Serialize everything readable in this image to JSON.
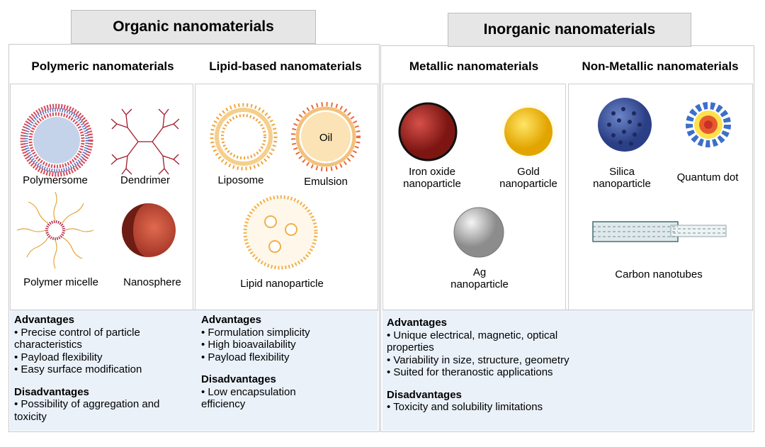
{
  "organic": {
    "title": "Organic nanomaterials",
    "groups": [
      {
        "title": "Polymeric nanomaterials",
        "items": [
          "Polymersome",
          "Dendrimer",
          "Polymer micelle",
          "Nanosphere"
        ],
        "advantages": {
          "heading": "Advantages",
          "points": [
            "• Precise control of particle characteristics",
            "• Payload flexibility",
            "• Easy surface modification"
          ]
        },
        "disadvantages": {
          "heading": "Disadvantages",
          "points": [
            "• Possibility of aggregation and toxicity"
          ]
        }
      },
      {
        "title": "Lipid-based nanomaterials",
        "items": [
          "Liposome",
          "Emulsion",
          "Lipid nanoparticle"
        ],
        "emulsion_core": "Oil",
        "advantages": {
          "heading": "Advantages",
          "points": [
            "• Formulation simplicity",
            "• High bioavailability",
            "• Payload flexibility"
          ]
        },
        "disadvantages": {
          "heading": "Disadvantages",
          "points": [
            "• Low encapsulation efficiency"
          ]
        }
      }
    ]
  },
  "inorganic": {
    "title": "Inorganic nanomaterials",
    "groups": [
      {
        "title": "Metallic nanomaterials",
        "items": [
          "Iron oxide nanoparticle",
          "Gold nanoparticle",
          "Ag nanoparticle"
        ]
      },
      {
        "title": "Non-Metallic nanomaterials",
        "items": [
          "Silica nanoparticle",
          "Quantum dot",
          "Carbon nanotubes"
        ]
      }
    ],
    "advantages": {
      "heading": "Advantages",
      "points": [
        "• Unique electrical, magnetic, optical properties",
        "• Variability in size, structure, geometry",
        "• Suited for theranostic applications"
      ]
    },
    "disadvantages": {
      "heading": "Disadvantages",
      "points": [
        "• Toxicity and solubility limitations"
      ]
    }
  }
}
